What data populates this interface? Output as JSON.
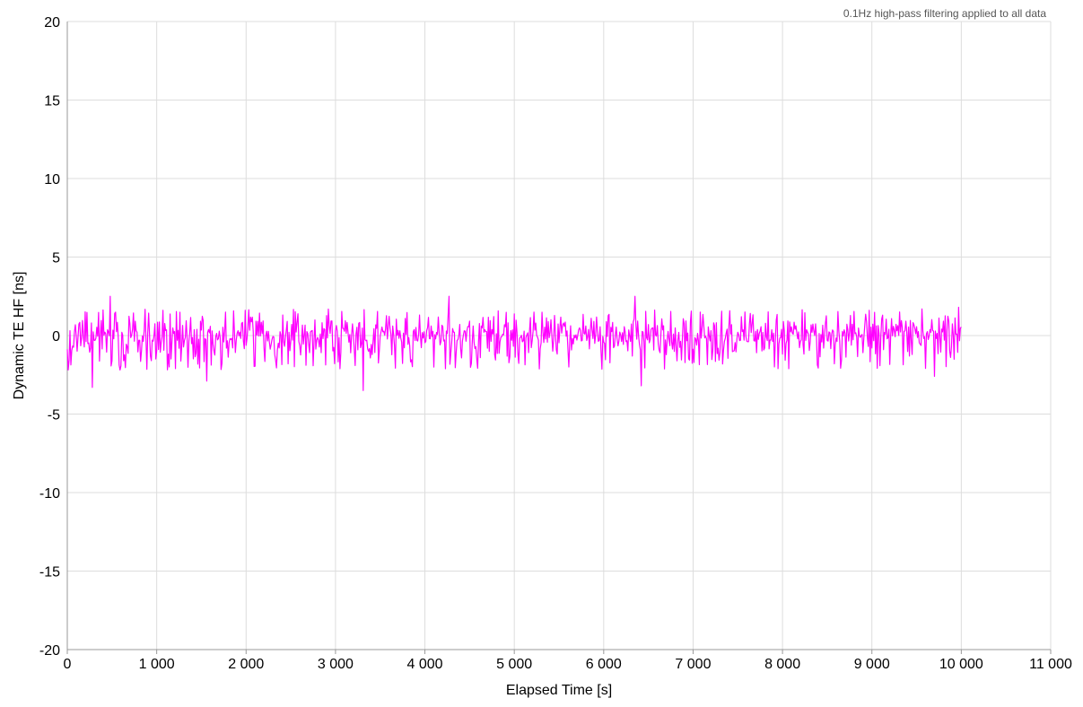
{
  "note": "0.1Hz high-pass filtering applied to all data",
  "chart_data": {
    "type": "line",
    "xlabel": "Elapsed Time [s]",
    "ylabel": "Dynamic TE HF [ns]",
    "xlim": [
      0,
      11000
    ],
    "ylim": [
      -20,
      20
    ],
    "x_ticks": [
      0,
      1000,
      2000,
      3000,
      4000,
      5000,
      6000,
      7000,
      8000,
      9000,
      10000,
      11000
    ],
    "x_tick_labels": [
      "0",
      "1 000",
      "2 000",
      "3 000",
      "4 000",
      "5 000",
      "6 000",
      "7 000",
      "8 000",
      "9 000",
      "10 000",
      "11 000"
    ],
    "y_ticks": [
      20,
      15,
      10,
      5,
      0,
      -5,
      -10,
      -15,
      -20
    ],
    "y_tick_labels": [
      "20",
      "15",
      "10",
      "5",
      "0",
      "-5",
      "-10",
      "-15",
      "-20"
    ],
    "grid": true,
    "legend": "none",
    "series": [
      {
        "color": "#ff00ff",
        "x_start": 0,
        "x_end": 10000,
        "approx_range": [
          -3.5,
          2.5
        ],
        "peaks": [
          {
            "x": 280,
            "y": -3.3
          },
          {
            "x": 480,
            "y": 2.5
          },
          {
            "x": 1560,
            "y": -2.9
          },
          {
            "x": 3310,
            "y": -3.5
          },
          {
            "x": 4270,
            "y": 2.5
          },
          {
            "x": 6350,
            "y": 2.5
          },
          {
            "x": 6420,
            "y": -3.2
          },
          {
            "x": 9700,
            "y": -2.6
          },
          {
            "x": 9970,
            "y": 1.8
          }
        ]
      }
    ]
  }
}
